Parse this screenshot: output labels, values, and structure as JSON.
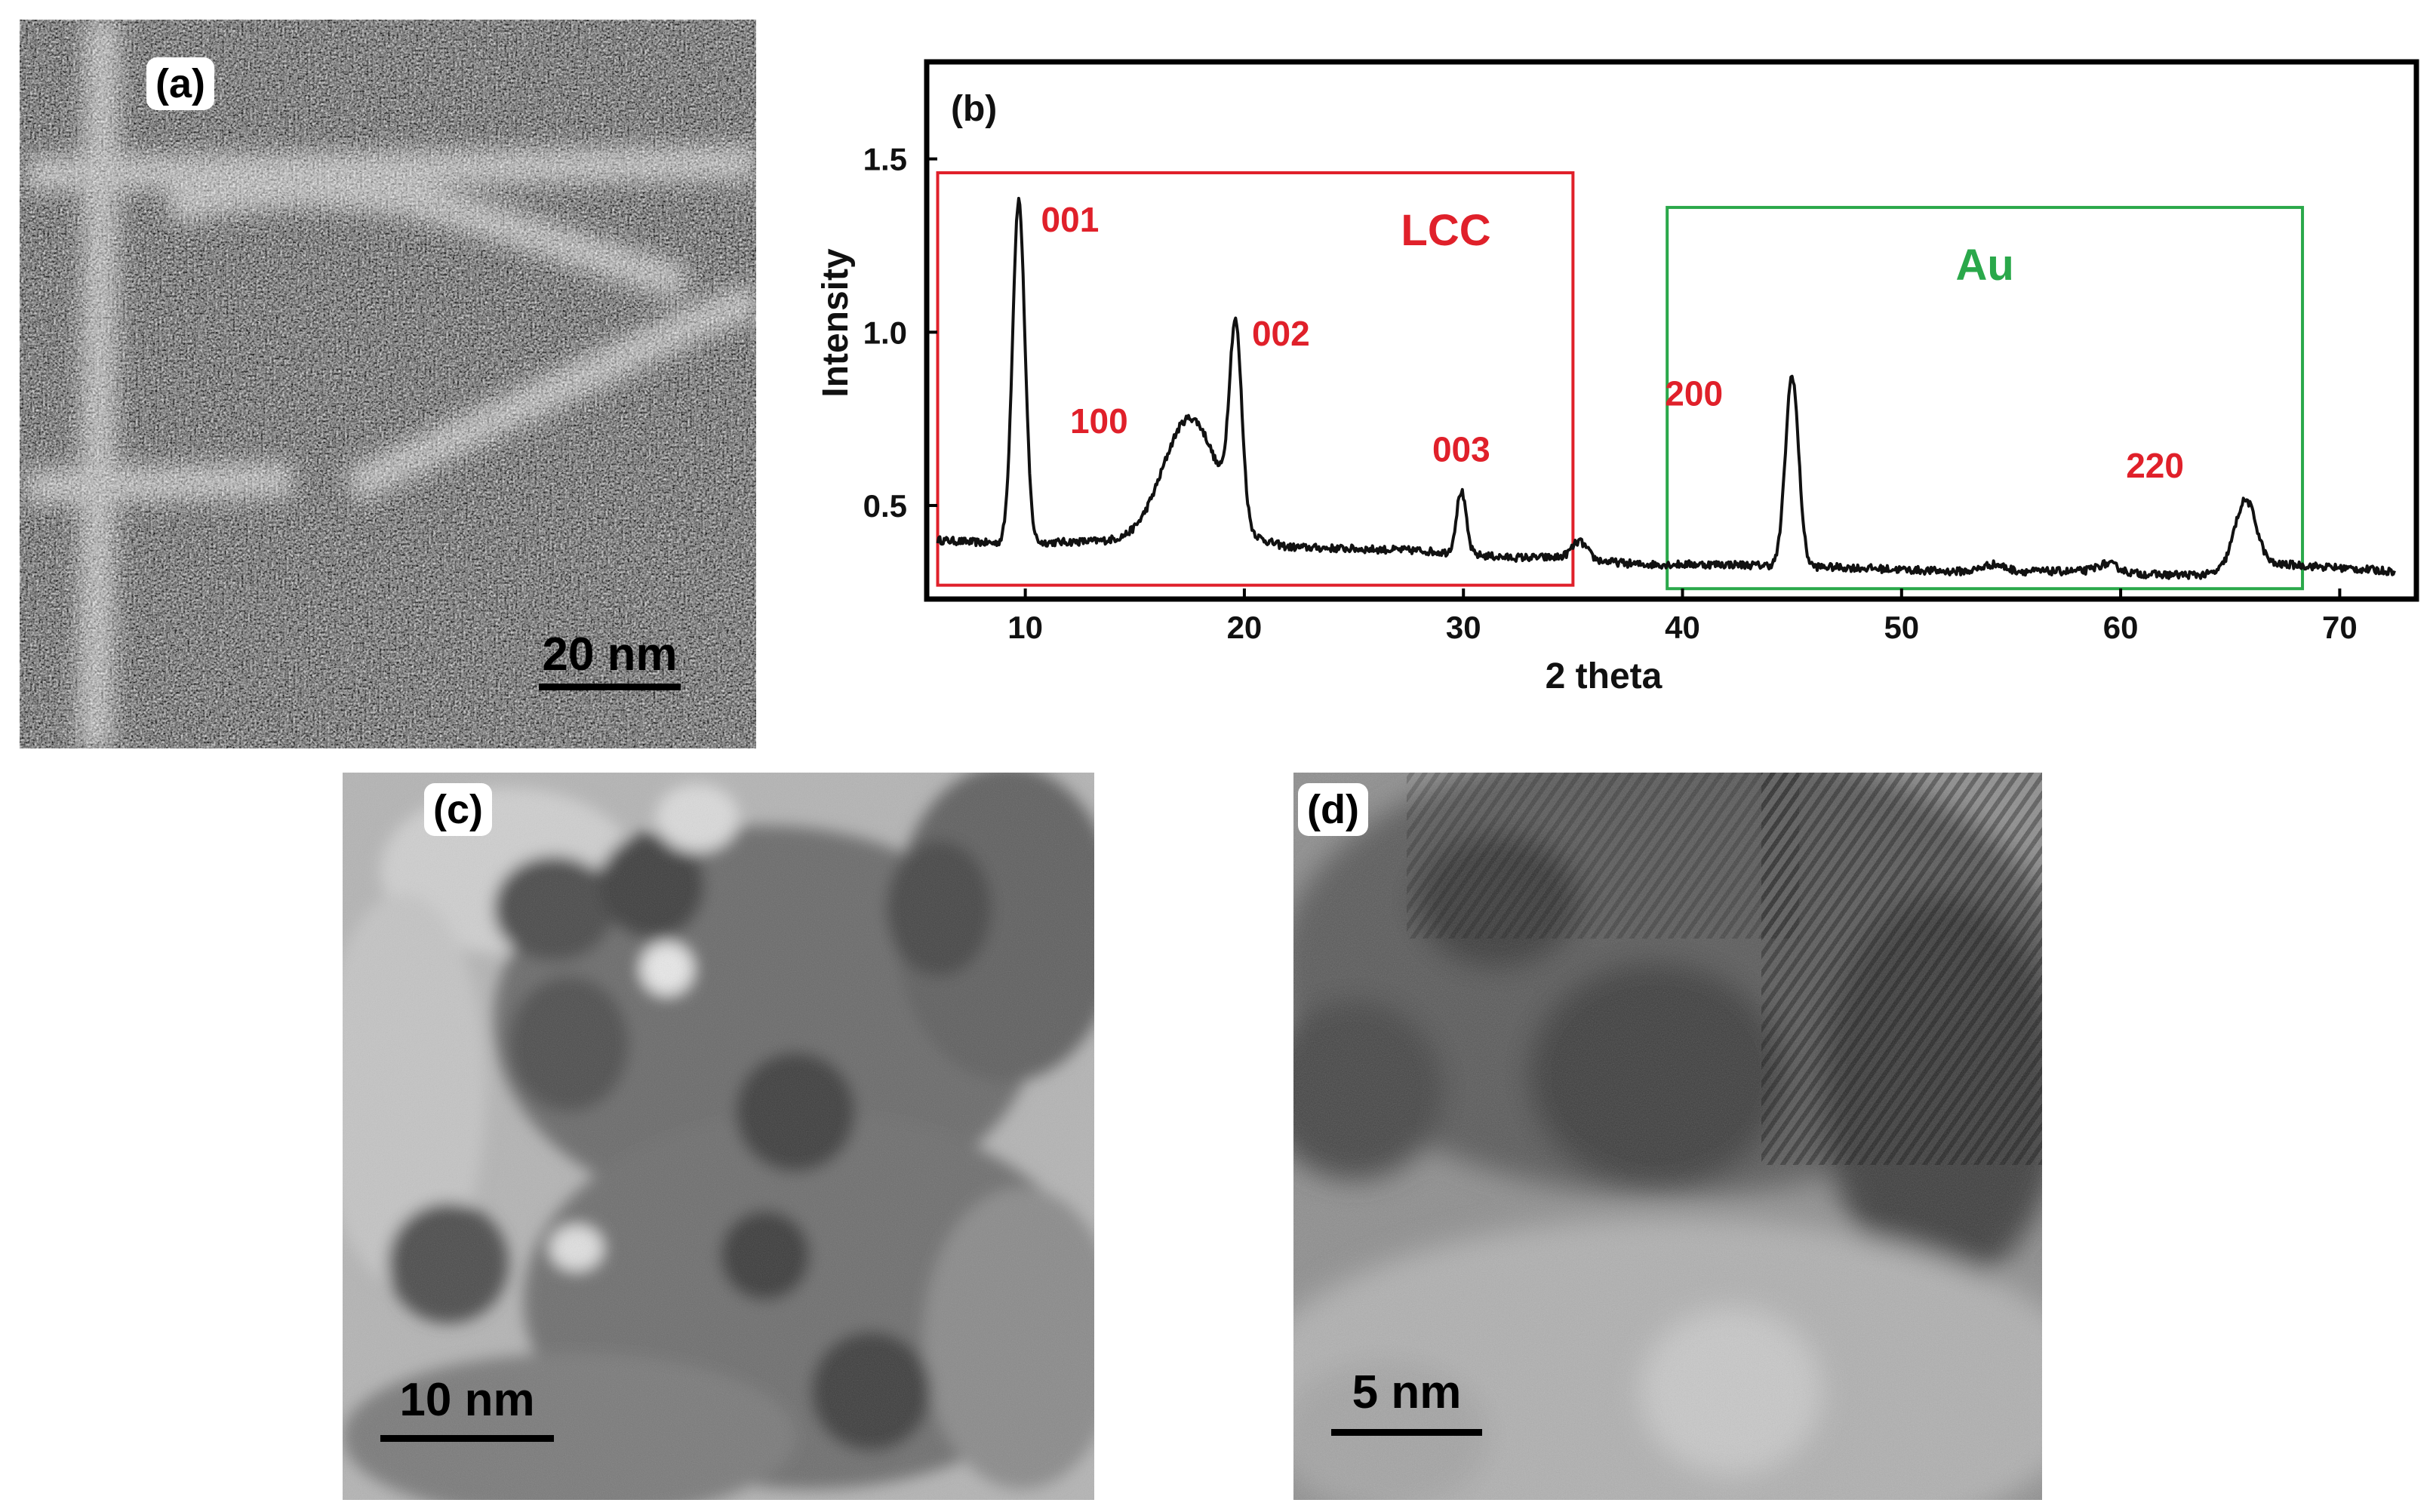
{
  "panels": {
    "a": {
      "label": "(a)",
      "scale_text": "20 nm",
      "image": "STM image of atomic rows"
    },
    "c": {
      "label": "(c)",
      "scale_text": "10 nm",
      "image": "TEM image of nanoparticles"
    },
    "d": {
      "label": "(d)",
      "scale_text": "5 nm",
      "image": "HRTEM image with lattice fringes"
    }
  },
  "chart_data": {
    "type": "line",
    "panel_label": "(b)",
    "xlabel": "2 theta",
    "ylabel": "Intensity",
    "xlim": [
      5.5,
      73.5
    ],
    "ylim": [
      0.23,
      1.78
    ],
    "xticks": [
      10,
      20,
      30,
      40,
      50,
      60,
      70
    ],
    "yticks": [
      0.5,
      1.0,
      1.5
    ],
    "ytick_labels": [
      "0.5",
      "1.0",
      "1.5"
    ],
    "grid": false,
    "baseline_x": [
      6,
      9.0,
      15,
      19.0,
      22,
      28,
      32,
      34.5,
      38,
      42,
      48,
      52,
      58,
      62,
      63.8,
      67.5,
      72.5
    ],
    "baseline_y": [
      0.4,
      0.39,
      0.4,
      0.42,
      0.38,
      0.37,
      0.35,
      0.35,
      0.33,
      0.33,
      0.32,
      0.31,
      0.31,
      0.3,
      0.3,
      0.33,
      0.31
    ],
    "peaks": [
      {
        "label": "001",
        "x": 9.7,
        "height": 0.99,
        "width": 0.28
      },
      {
        "label": "100",
        "x": 17.5,
        "height": 0.34,
        "width": 1.2
      },
      {
        "label": "002",
        "x": 19.6,
        "height": 0.55,
        "width": 0.28
      },
      {
        "label": "003",
        "x": 29.9,
        "height": 0.18,
        "width": 0.22
      },
      {
        "label": "",
        "x": 35.3,
        "height": 0.05,
        "width": 0.35
      },
      {
        "label": "200",
        "x": 45.0,
        "height": 0.55,
        "width": 0.3
      },
      {
        "label": "",
        "x": 54.2,
        "height": 0.02,
        "width": 0.5
      },
      {
        "label": "",
        "x": 59.4,
        "height": 0.025,
        "width": 0.5
      },
      {
        "label": "220",
        "x": 65.7,
        "height": 0.2,
        "width": 0.5
      }
    ],
    "regions": [
      {
        "name": "LCC",
        "x": [
          6,
          35
        ],
        "y": [
          0.27,
          1.46
        ],
        "color": "#e0202a"
      },
      {
        "name": "Au",
        "x": [
          39.3,
          68.3
        ],
        "y": [
          0.26,
          1.36
        ],
        "color": "#2aa84a"
      }
    ]
  },
  "colors": {
    "lcc": "#e0202a",
    "au": "#2aa84a",
    "axis": "#000000"
  }
}
